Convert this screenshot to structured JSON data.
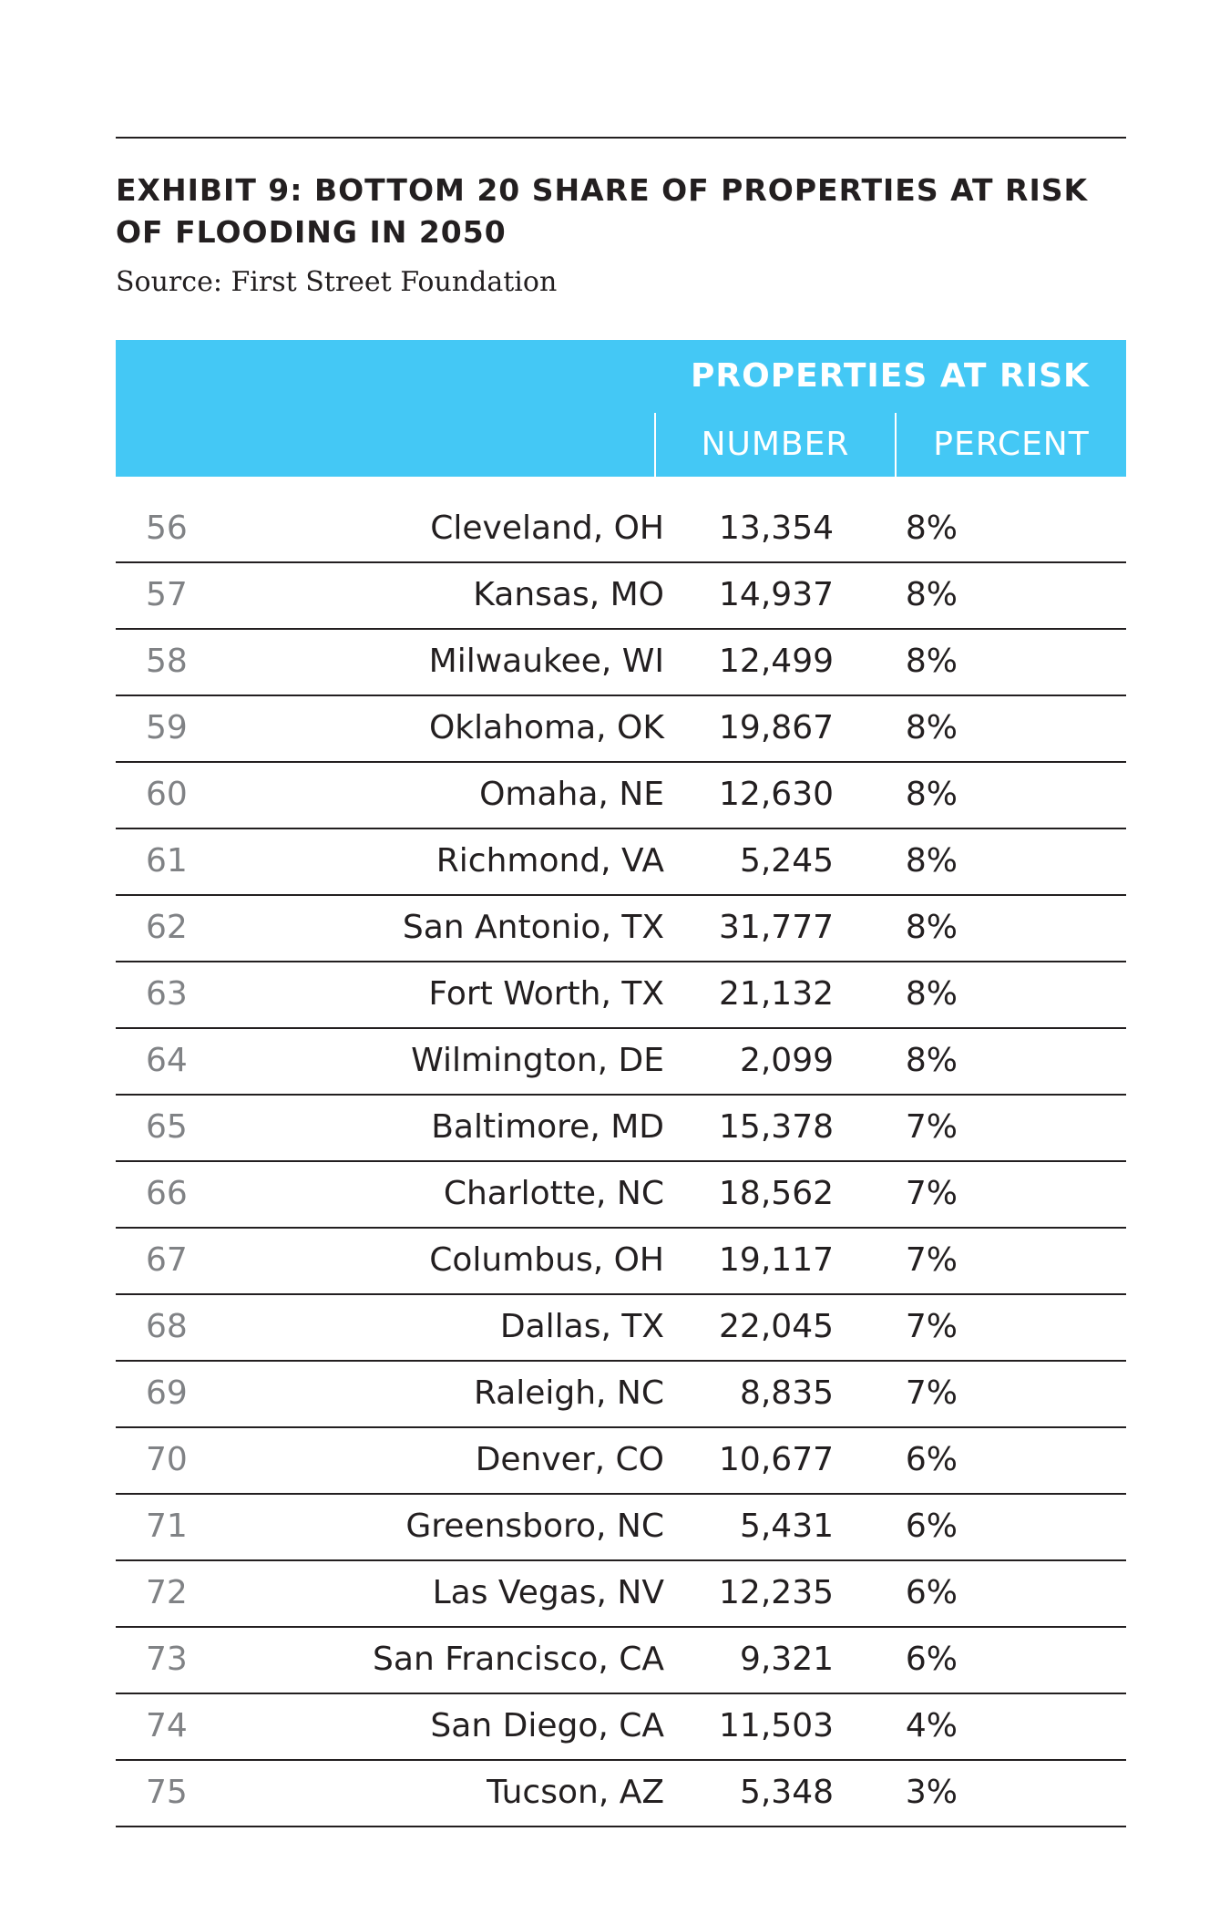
{
  "title": "EXHIBIT 9: BOTTOM 20 SHARE OF PROPERTIES AT RISK OF FLOODING IN 2050",
  "source": "Source: First Street Foundation",
  "colors": {
    "header_bg": "#44c8f5",
    "header_text": "#ffffff",
    "text": "#231f20",
    "rank_text": "#808285",
    "rule": "#231f20"
  },
  "chart_data": {
    "type": "table",
    "title": "EXHIBIT 9: BOTTOM 20 SHARE OF PROPERTIES AT RISK OF FLOODING IN 2050",
    "group_header": "PROPERTIES AT RISK",
    "columns": [
      "",
      "",
      "NUMBER",
      "PERCENT"
    ],
    "rows": [
      {
        "rank": "56",
        "city": "Cleveland, OH",
        "number": "13,354",
        "percent": "8%"
      },
      {
        "rank": "57",
        "city": "Kansas, MO",
        "number": "14,937",
        "percent": "8%"
      },
      {
        "rank": "58",
        "city": "Milwaukee, WI",
        "number": "12,499",
        "percent": "8%"
      },
      {
        "rank": "59",
        "city": "Oklahoma, OK",
        "number": "19,867",
        "percent": "8%"
      },
      {
        "rank": "60",
        "city": "Omaha, NE",
        "number": "12,630",
        "percent": "8%"
      },
      {
        "rank": "61",
        "city": "Richmond, VA",
        "number": "5,245",
        "percent": "8%"
      },
      {
        "rank": "62",
        "city": "San Antonio, TX",
        "number": "31,777",
        "percent": "8%"
      },
      {
        "rank": "63",
        "city": "Fort Worth, TX",
        "number": "21,132",
        "percent": "8%"
      },
      {
        "rank": "64",
        "city": "Wilmington, DE",
        "number": "2,099",
        "percent": "8%"
      },
      {
        "rank": "65",
        "city": "Baltimore, MD",
        "number": "15,378",
        "percent": "7%"
      },
      {
        "rank": "66",
        "city": "Charlotte, NC",
        "number": "18,562",
        "percent": "7%"
      },
      {
        "rank": "67",
        "city": "Columbus, OH",
        "number": "19,117",
        "percent": "7%"
      },
      {
        "rank": "68",
        "city": "Dallas, TX",
        "number": "22,045",
        "percent": "7%"
      },
      {
        "rank": "69",
        "city": "Raleigh, NC",
        "number": "8,835",
        "percent": "7%"
      },
      {
        "rank": "70",
        "city": "Denver, CO",
        "number": "10,677",
        "percent": "6%"
      },
      {
        "rank": "71",
        "city": "Greensboro, NC",
        "number": "5,431",
        "percent": "6%"
      },
      {
        "rank": "72",
        "city": "Las Vegas, NV",
        "number": "12,235",
        "percent": "6%"
      },
      {
        "rank": "73",
        "city": "San Francisco, CA",
        "number": "9,321",
        "percent": "6%"
      },
      {
        "rank": "74",
        "city": "San Diego, CA",
        "number": "11,503",
        "percent": "4%"
      },
      {
        "rank": "75",
        "city": "Tucson, AZ",
        "number": "5,348",
        "percent": "3%"
      }
    ]
  }
}
